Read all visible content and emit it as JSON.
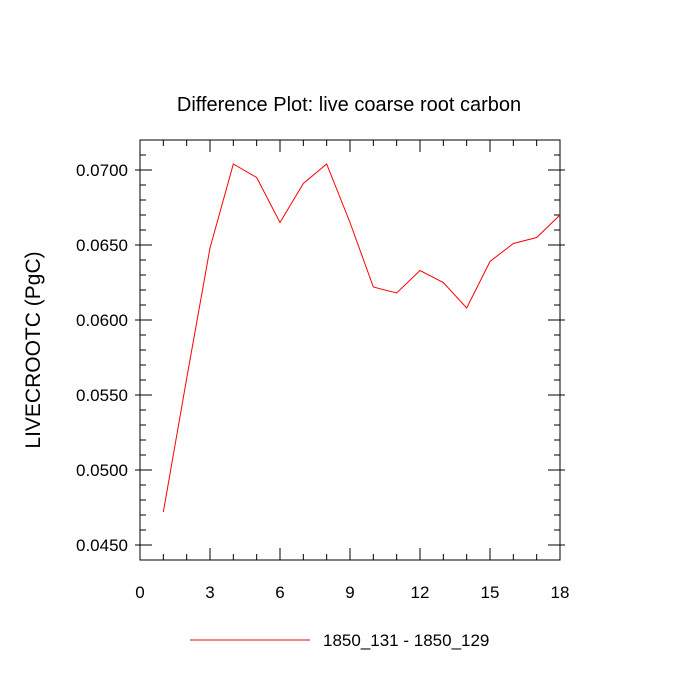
{
  "chart_data": {
    "type": "line",
    "title": "Difference Plot: live coarse root carbon",
    "xlabel": "",
    "ylabel": "LIVECROOTC  (PgC)",
    "xlim": [
      0,
      18
    ],
    "ylim": [
      0.044,
      0.072
    ],
    "x_ticks": [
      0,
      3,
      6,
      9,
      12,
      15,
      18
    ],
    "x_tick_labels": [
      "0",
      "3",
      "6",
      "9",
      "12",
      "15",
      "18"
    ],
    "y_ticks": [
      0.045,
      0.05,
      0.055,
      0.06,
      0.065,
      0.07
    ],
    "y_tick_labels": [
      "0.0450",
      "0.0500",
      "0.0550",
      "0.0600",
      "0.0650",
      "0.0700"
    ],
    "grid": false,
    "legend_position": "bottom-center",
    "series": [
      {
        "name": "1850_131 - 1850_129",
        "color": "#ff0000",
        "x": [
          1,
          2,
          3,
          4,
          5,
          6,
          7,
          8,
          9,
          10,
          11,
          12,
          13,
          14,
          15,
          16,
          17,
          18
        ],
        "values": [
          0.0472,
          0.0561,
          0.0648,
          0.0704,
          0.0695,
          0.0665,
          0.0691,
          0.0704,
          0.0665,
          0.0622,
          0.0618,
          0.0633,
          0.0625,
          0.0608,
          0.0639,
          0.0651,
          0.0655,
          0.067
        ]
      }
    ]
  }
}
